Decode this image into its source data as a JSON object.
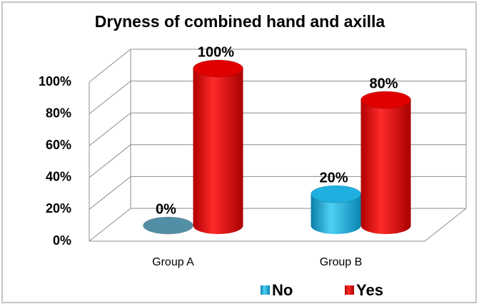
{
  "chart_data": {
    "type": "bar3d",
    "title": "Dryness of combined hand and axilla",
    "categories": [
      "Group A",
      "Group B"
    ],
    "series": [
      {
        "name": "No",
        "color": "#1fb0e0",
        "values": [
          0,
          20
        ],
        "value_labels": [
          "0%",
          "20%"
        ]
      },
      {
        "name": "Yes",
        "color": "#e00000",
        "values": [
          100,
          80
        ],
        "value_labels": [
          "100%",
          "80%"
        ]
      }
    ],
    "ylim": [
      0,
      100
    ],
    "yticks": [
      {
        "value": 0,
        "label": "0%"
      },
      {
        "value": 20,
        "label": "20%"
      },
      {
        "value": 40,
        "label": "40%"
      },
      {
        "value": 60,
        "label": "60%"
      },
      {
        "value": 80,
        "label": "80%"
      },
      {
        "value": 100,
        "label": "100%"
      }
    ],
    "grid": true,
    "legend": "bottom"
  }
}
